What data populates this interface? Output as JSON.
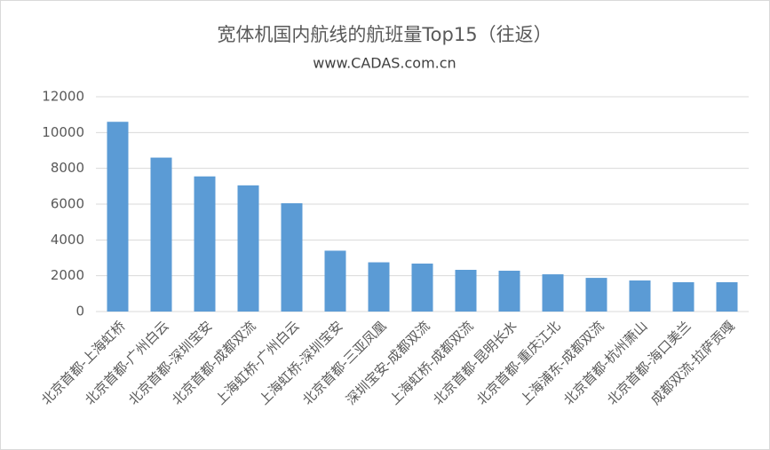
{
  "chart_data": {
    "type": "bar",
    "title": "宽体机国内航线的航班量Top15（往返）",
    "subtitle": "www.CADAS.com.cn",
    "categories": [
      "北京首都-上海虹桥",
      "北京首都-广州白云",
      "北京首都-深圳宝安",
      "北京首都-成都双流",
      "上海虹桥-广州白云",
      "上海虹桥-深圳宝安",
      "北京首都-三亚凤凰",
      "深圳宝安-成都双流",
      "上海虹桥-成都双流",
      "北京首都-昆明长水",
      "北京首都-重庆江北",
      "上海浦东-成都双流",
      "北京首都-杭州萧山",
      "北京首都-海口美兰",
      "成都双流-拉萨贡嘎"
    ],
    "values": [
      10600,
      8600,
      7550,
      7050,
      6050,
      3400,
      2750,
      2680,
      2330,
      2280,
      2080,
      1880,
      1735,
      1640,
      1640
    ],
    "color": "#5b9bd5",
    "ylim": [
      0,
      12000
    ],
    "yticks": [
      0,
      2000,
      4000,
      6000,
      8000,
      10000,
      12000
    ],
    "grid": true
  }
}
